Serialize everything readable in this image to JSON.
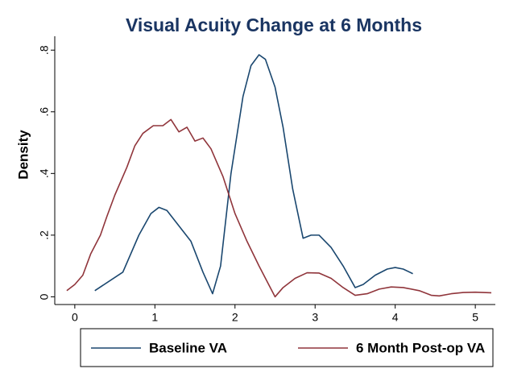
{
  "chart_data": {
    "type": "line",
    "title": "Visual Acuity Change at 6 Months",
    "ylabel": "Density",
    "xlim": [
      -0.25,
      5.25
    ],
    "ylim": [
      -0.025,
      0.845
    ],
    "xticks": [
      0,
      1,
      2,
      3,
      4,
      5
    ],
    "yticks": [
      0,
      {
        "value": 0.2,
        "label": ".2"
      },
      {
        "value": 0.4,
        "label": ".4"
      },
      {
        "value": 0.6,
        "label": ".6"
      },
      {
        "value": 0.8,
        "label": ".8"
      }
    ],
    "grid": false,
    "legend": "bottom",
    "series": [
      {
        "name": "Baseline VA",
        "color": "#1a476f",
        "x": [
          0.25,
          0.6,
          0.8,
          0.95,
          1.05,
          1.15,
          1.3,
          1.45,
          1.6,
          1.72,
          1.82,
          1.95,
          2.1,
          2.2,
          2.3,
          2.38,
          2.5,
          2.6,
          2.72,
          2.85,
          2.95,
          3.05,
          3.2,
          3.35,
          3.5,
          3.6,
          3.75,
          3.9,
          4.0,
          4.1,
          4.22
        ],
        "values": [
          0.02,
          0.08,
          0.2,
          0.27,
          0.29,
          0.28,
          0.23,
          0.18,
          0.08,
          0.01,
          0.1,
          0.4,
          0.65,
          0.75,
          0.785,
          0.77,
          0.68,
          0.55,
          0.35,
          0.19,
          0.2,
          0.2,
          0.16,
          0.1,
          0.03,
          0.04,
          0.07,
          0.09,
          0.095,
          0.09,
          0.075
        ]
      },
      {
        "name": "6 Month Post-op VA",
        "color": "#90353b",
        "x": [
          -0.1,
          0.0,
          0.1,
          0.2,
          0.32,
          0.4,
          0.5,
          0.65,
          0.75,
          0.85,
          0.98,
          1.1,
          1.2,
          1.3,
          1.4,
          1.5,
          1.6,
          1.7,
          1.85,
          2.0,
          2.15,
          2.3,
          2.4,
          2.5,
          2.6,
          2.75,
          2.9,
          3.05,
          3.2,
          3.35,
          3.5,
          3.65,
          3.8,
          3.95,
          4.1,
          4.3,
          4.45,
          4.55,
          4.7,
          4.85,
          5.0,
          5.2
        ],
        "values": [
          0.02,
          0.04,
          0.07,
          0.14,
          0.2,
          0.26,
          0.33,
          0.42,
          0.49,
          0.53,
          0.555,
          0.555,
          0.575,
          0.535,
          0.55,
          0.505,
          0.515,
          0.48,
          0.39,
          0.27,
          0.18,
          0.1,
          0.05,
          0.0,
          0.03,
          0.06,
          0.078,
          0.077,
          0.06,
          0.03,
          0.005,
          0.01,
          0.025,
          0.032,
          0.03,
          0.02,
          0.005,
          0.003,
          0.01,
          0.014,
          0.015,
          0.013
        ]
      }
    ]
  }
}
